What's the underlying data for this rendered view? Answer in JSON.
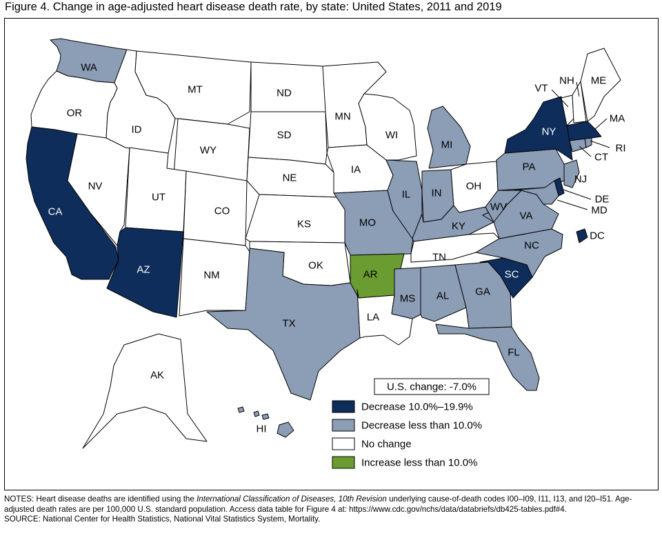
{
  "title": "Figure 4. Change in age-adjusted heart disease death rate, by state: United States, 2011 and 2019",
  "colors": {
    "dec_10_19": "#0e2d5a",
    "dec_lt_10": "#8c9db6",
    "no_change": "#ffffff",
    "inc_lt_10": "#6a9c32"
  },
  "legend": {
    "us_change": "U.S. change: -7.0%",
    "items": [
      {
        "key": "dec_10_19",
        "label": "Decrease 10.0%–19.9%"
      },
      {
        "key": "dec_lt_10",
        "label": "Decrease less than 10.0%"
      },
      {
        "key": "no_change",
        "label": "No change"
      },
      {
        "key": "inc_lt_10",
        "label": "Increase less than 10.0%"
      }
    ]
  },
  "states": [
    {
      "abbr": "WA",
      "category": "dec_lt_10"
    },
    {
      "abbr": "OR",
      "category": "no_change"
    },
    {
      "abbr": "CA",
      "category": "dec_10_19"
    },
    {
      "abbr": "NV",
      "category": "no_change"
    },
    {
      "abbr": "ID",
      "category": "no_change"
    },
    {
      "abbr": "MT",
      "category": "no_change"
    },
    {
      "abbr": "WY",
      "category": "no_change"
    },
    {
      "abbr": "UT",
      "category": "no_change"
    },
    {
      "abbr": "AZ",
      "category": "dec_10_19"
    },
    {
      "abbr": "CO",
      "category": "no_change"
    },
    {
      "abbr": "NM",
      "category": "no_change"
    },
    {
      "abbr": "ND",
      "category": "no_change"
    },
    {
      "abbr": "SD",
      "category": "no_change"
    },
    {
      "abbr": "NE",
      "category": "no_change"
    },
    {
      "abbr": "KS",
      "category": "no_change"
    },
    {
      "abbr": "OK",
      "category": "no_change"
    },
    {
      "abbr": "TX",
      "category": "dec_lt_10"
    },
    {
      "abbr": "MN",
      "category": "no_change"
    },
    {
      "abbr": "IA",
      "category": "no_change"
    },
    {
      "abbr": "MO",
      "category": "dec_lt_10"
    },
    {
      "abbr": "AR",
      "category": "inc_lt_10"
    },
    {
      "abbr": "LA",
      "category": "no_change"
    },
    {
      "abbr": "WI",
      "category": "no_change"
    },
    {
      "abbr": "IL",
      "category": "dec_lt_10"
    },
    {
      "abbr": "MI",
      "category": "dec_lt_10"
    },
    {
      "abbr": "IN",
      "category": "dec_lt_10"
    },
    {
      "abbr": "OH",
      "category": "no_change"
    },
    {
      "abbr": "KY",
      "category": "dec_lt_10"
    },
    {
      "abbr": "TN",
      "category": "no_change"
    },
    {
      "abbr": "MS",
      "category": "dec_lt_10"
    },
    {
      "abbr": "AL",
      "category": "dec_lt_10"
    },
    {
      "abbr": "GA",
      "category": "dec_lt_10"
    },
    {
      "abbr": "FL",
      "category": "dec_lt_10"
    },
    {
      "abbr": "SC",
      "category": "dec_10_19"
    },
    {
      "abbr": "NC",
      "category": "dec_lt_10"
    },
    {
      "abbr": "VA",
      "category": "dec_lt_10"
    },
    {
      "abbr": "WV",
      "category": "dec_lt_10"
    },
    {
      "abbr": "PA",
      "category": "dec_lt_10"
    },
    {
      "abbr": "NY",
      "category": "dec_10_19"
    },
    {
      "abbr": "NJ",
      "category": "dec_lt_10"
    },
    {
      "abbr": "DE",
      "category": "dec_10_19"
    },
    {
      "abbr": "MD",
      "category": "dec_lt_10"
    },
    {
      "abbr": "DC",
      "category": "dec_10_19"
    },
    {
      "abbr": "CT",
      "category": "dec_lt_10"
    },
    {
      "abbr": "RI",
      "category": "dec_lt_10"
    },
    {
      "abbr": "MA",
      "category": "dec_10_19"
    },
    {
      "abbr": "VT",
      "category": "no_change"
    },
    {
      "abbr": "NH",
      "category": "no_change"
    },
    {
      "abbr": "ME",
      "category": "no_change"
    },
    {
      "abbr": "AK",
      "category": "no_change"
    },
    {
      "abbr": "HI",
      "category": "dec_lt_10"
    }
  ],
  "notes": {
    "line1_pre": "NOTES: Heart disease deaths are identified using the ",
    "line1_em": "International Classification of Diseases, 10th Revision",
    "line1_post": " underlying cause-of-death codes I00–I09, I11, I13, and I20–I51. Age-adjusted death rates are per 100,000 U.S. standard population. Access data table for Figure 4 at: https://www.cdc.gov/nchs/data/databriefs/db425-tables.pdf#4.",
    "source": "SOURCE: National Center for Health Statistics, National Vital Statistics System, Mortality."
  }
}
